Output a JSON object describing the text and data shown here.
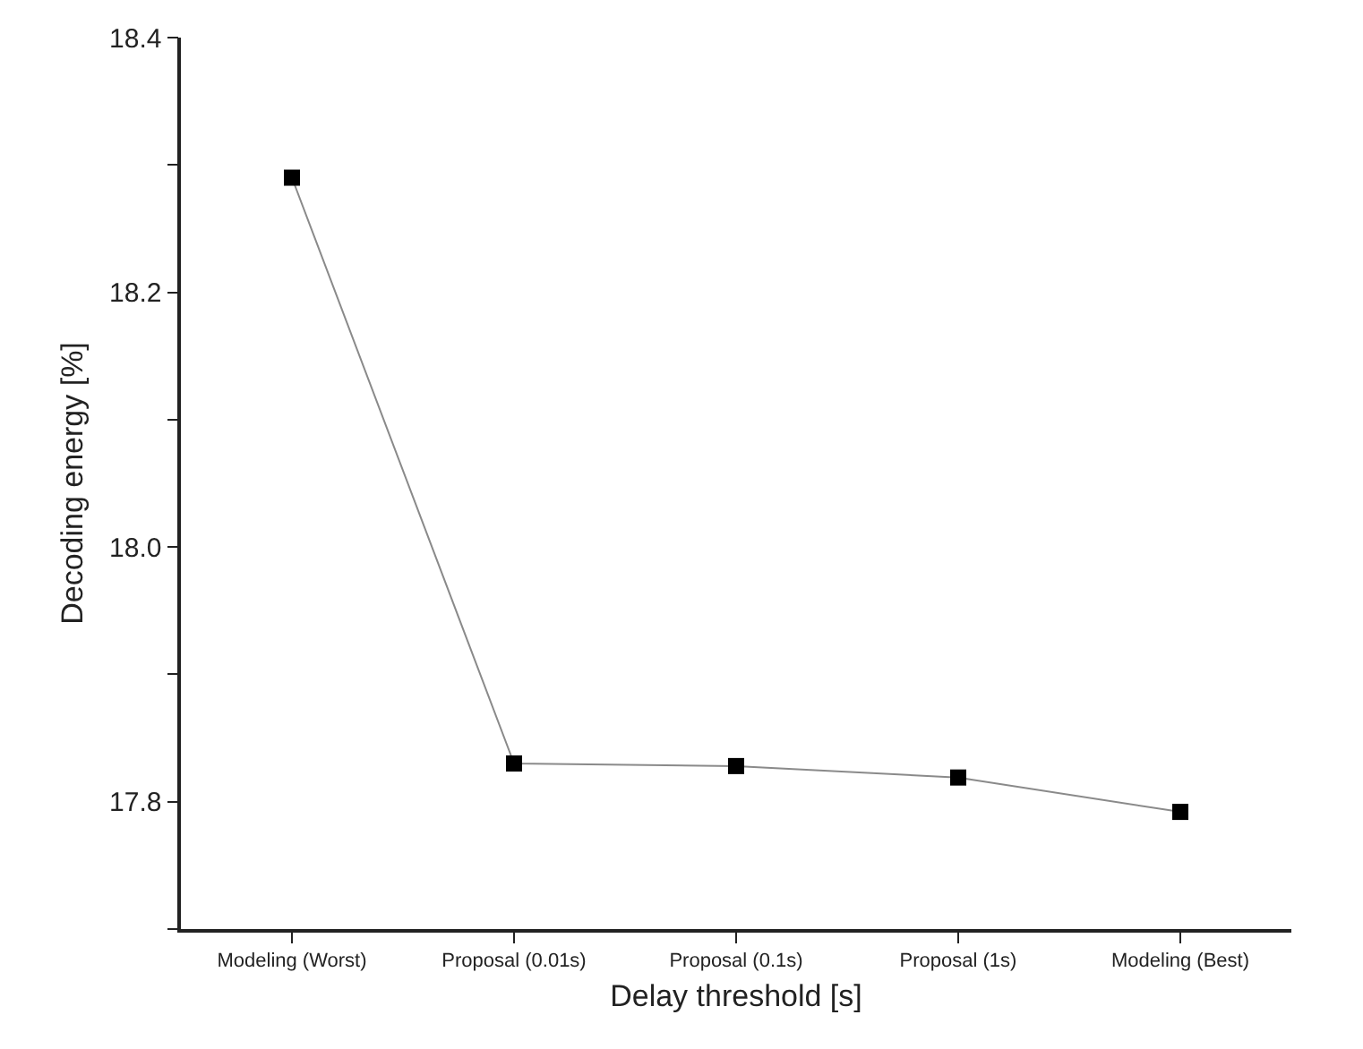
{
  "chart_data": {
    "type": "line",
    "xlabel": "Delay threshold [s]",
    "ylabel": "Decoding energy [%]",
    "categories": [
      "Modeling (Worst)",
      "Proposal (0.01s)",
      "Proposal (0.1s)",
      "Proposal (1s)",
      "Modeling (Best)"
    ],
    "series": [
      {
        "values": [
          18.29,
          17.83,
          17.828,
          17.819,
          17.792
        ],
        "color": "#000000"
      }
    ],
    "ylim": [
      17.7,
      18.4
    ],
    "yticks": [
      {
        "value": 17.7,
        "label": null
      },
      17.8,
      {
        "value": 17.9,
        "label": null
      },
      "18.0",
      {
        "value": 18.1,
        "label": null
      },
      18.2,
      {
        "value": 18.3,
        "label": null
      },
      18.4
    ],
    "marker": "square",
    "line_style": "solid"
  }
}
